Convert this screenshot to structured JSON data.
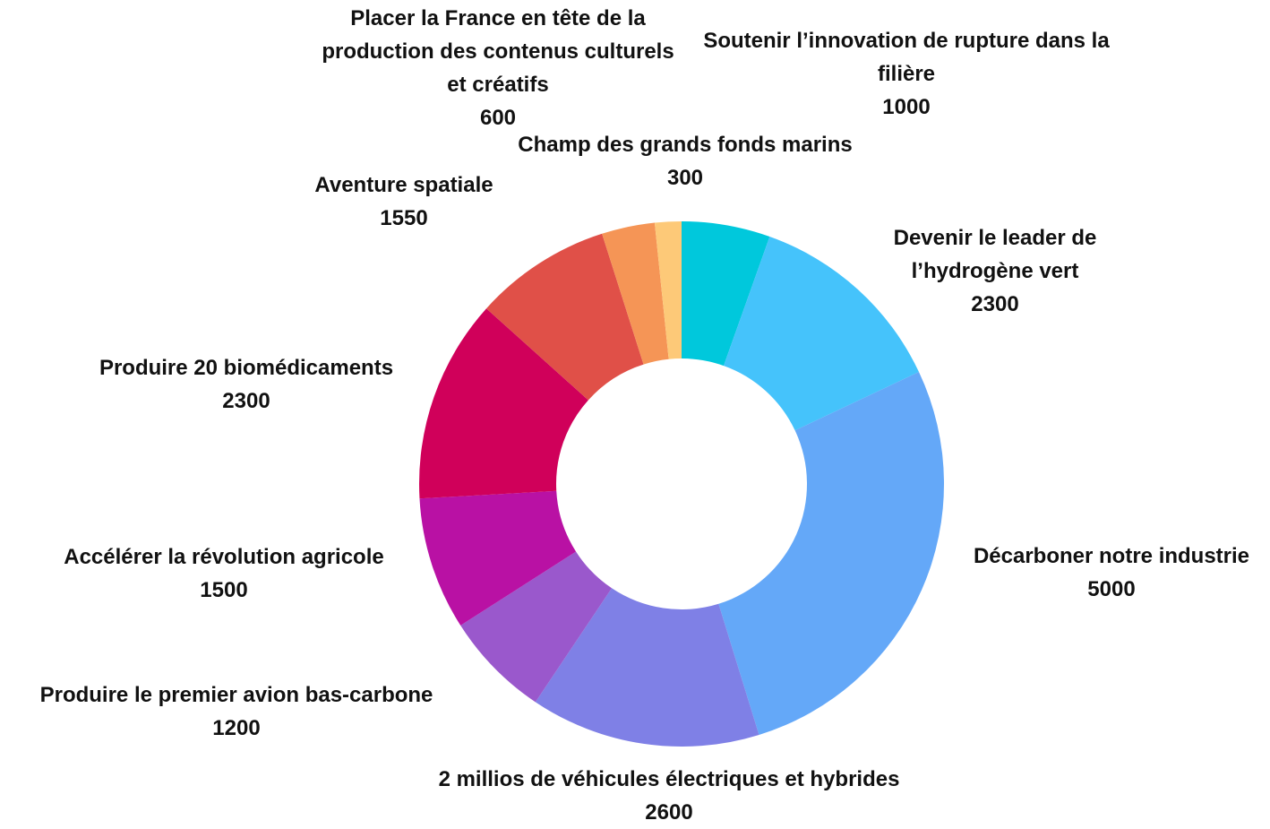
{
  "chart_data": {
    "type": "donut",
    "categories": [
      "Soutenir l’innovation de rupture dans la filière",
      "Devenir le leader de l’hydrogène vert",
      "Décarboner notre industrie",
      "2 millios de véhicules électriques et hybrides",
      "Produire le premier avion bas-carbone",
      "Accélérer la révolution agricole",
      "Produire 20 biomédicaments",
      "Aventure spatiale",
      "Placer la France en tête de la production des contenus culturels et créatifs",
      "Champ des grands fonds marins"
    ],
    "values": [
      1000,
      2300,
      5000,
      2600,
      1200,
      1500,
      2300,
      1550,
      600,
      300
    ],
    "colors": [
      "#00c8dc",
      "#45c3fb",
      "#64a8f8",
      "#7f80e6",
      "#9a58cc",
      "#b911a4",
      "#d0005a",
      "#e05048",
      "#f59556",
      "#fdc978"
    ]
  }
}
